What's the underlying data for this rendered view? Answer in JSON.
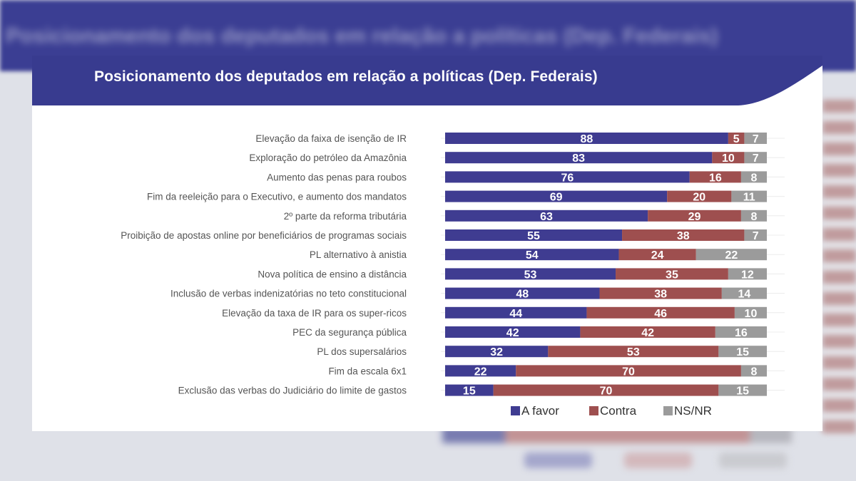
{
  "background": {
    "title": "Posicionamento dos deputados em relação a políticas (Dep. Federais)"
  },
  "colors": {
    "header": "#383b8f",
    "a_favor": "#3f3c91",
    "contra": "#9e4f4f",
    "ns_nr": "#9b9b9b"
  },
  "chart_data": {
    "type": "bar",
    "orientation": "horizontal",
    "stacked": true,
    "title": "Posicionamento dos deputados em relação a políticas (Dep. Federais)",
    "categories": [
      "Elevação da faixa de isenção de IR",
      "Exploração do petróleo da Amazônia",
      "Aumento das penas para roubos",
      "Fim da reeleição para o Executivo, e aumento dos mandatos",
      "2º parte da reforma tributária",
      "Proibição de apostas online por beneficiários de programas sociais",
      "PL alternativo à anistia",
      "Nova política de ensino a distância",
      "Inclusão de verbas indenizatórias no teto constitucional",
      "Elevação da taxa de IR para os super-ricos",
      "PEC da segurança pública",
      "PL dos supersalários",
      "Fim da escala 6x1",
      "Exclusão das verbas do Judiciário do limite de gastos"
    ],
    "series": [
      {
        "name": "A favor",
        "color": "#3f3c91",
        "values": [
          88,
          83,
          76,
          69,
          63,
          55,
          54,
          53,
          48,
          44,
          42,
          32,
          22,
          15
        ]
      },
      {
        "name": "Contra",
        "color": "#9e4f4f",
        "values": [
          5,
          10,
          16,
          20,
          29,
          38,
          24,
          35,
          38,
          46,
          42,
          53,
          70,
          70
        ]
      },
      {
        "name": "NS/NR",
        "color": "#9b9b9b",
        "values": [
          7,
          7,
          8,
          11,
          8,
          7,
          22,
          12,
          14,
          10,
          16,
          15,
          8,
          15
        ]
      }
    ],
    "xlim": [
      0,
      100
    ],
    "grid": false,
    "legend": "bottom"
  }
}
